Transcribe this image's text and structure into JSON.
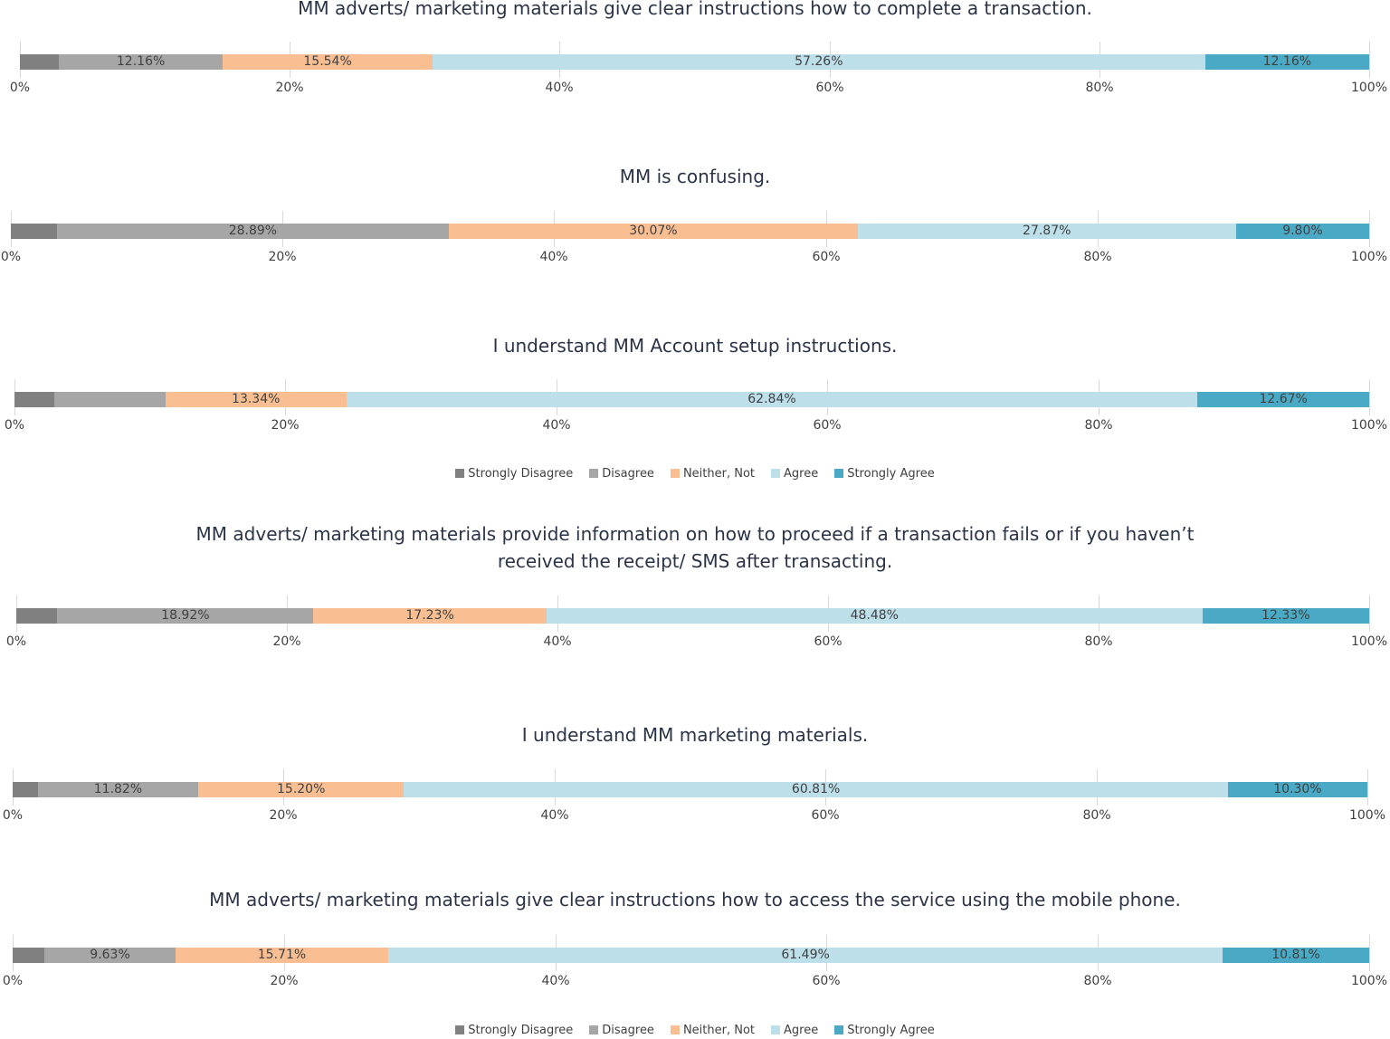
{
  "chart_data": {
    "type": "bar",
    "stacked": true,
    "orientation": "horizontal",
    "series_names": [
      "Strongly Disagree",
      "Disagree",
      "Neither, Not",
      "Agree",
      "Strongly Agree"
    ],
    "colors": [
      "#808080",
      "#a6a6a6",
      "#f9bf92",
      "#bddfea",
      "#4aaac5"
    ],
    "xlim": [
      0,
      100
    ],
    "x_ticks": [
      "0%",
      "20%",
      "40%",
      "60%",
      "80%",
      "100%"
    ],
    "charts": [
      {
        "title": "MM adverts/ marketing materials give clear instructions  how to complete a transaction.",
        "values": [
          2.88,
          12.16,
          15.54,
          57.26,
          12.16
        ],
        "labels": [
          "",
          "12.16%",
          "15.54%",
          "57.26%",
          "12.16%"
        ]
      },
      {
        "title": "MM is confusing.",
        "values": [
          3.37,
          28.89,
          30.07,
          27.87,
          9.8
        ],
        "labels": [
          "",
          "28.89%",
          "30.07%",
          "27.87%",
          "9.80%"
        ]
      },
      {
        "title": "I understand MM Account setup instructions.",
        "values": [
          2.91,
          8.24,
          13.34,
          62.84,
          12.67
        ],
        "labels": [
          "",
          "",
          "13.34%",
          "62.84%",
          "12.67%"
        ]
      },
      {
        "title": "MM adverts/ marketing materials provide  information on how to proceed if a transaction fails or if you  haven’t",
        "title2": "received the receipt/ SMS after transacting.",
        "values": [
          3.04,
          18.92,
          17.23,
          48.48,
          12.33
        ],
        "labels": [
          "",
          "18.92%",
          "17.23%",
          "48.48%",
          "12.33%"
        ]
      },
      {
        "title": "I understand  MM marketing materials.",
        "values": [
          1.87,
          11.82,
          15.2,
          60.81,
          10.3
        ],
        "labels": [
          "",
          "11.82%",
          "15.20%",
          "60.81%",
          "10.30%"
        ]
      },
      {
        "title": "MM adverts/ marketing materials give clear instructions  how to access the service using the mobile phone.",
        "values": [
          2.36,
          9.63,
          15.71,
          61.49,
          10.81
        ],
        "labels": [
          "",
          "9.63%",
          "15.71%",
          "61.49%",
          "10.81%"
        ]
      }
    ]
  }
}
